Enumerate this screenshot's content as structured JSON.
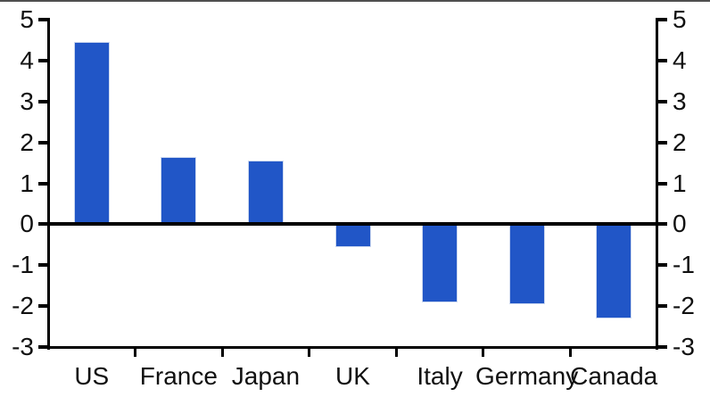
{
  "chart_data": {
    "type": "bar",
    "categories": [
      "US",
      "France",
      "Japan",
      "UK",
      "Italy",
      "Germany",
      "Canada"
    ],
    "values": [
      4.45,
      1.65,
      1.55,
      -0.55,
      -1.9,
      -1.95,
      -2.3
    ],
    "title": "",
    "xlabel": "",
    "ylabel": "",
    "ylim": [
      -3,
      5
    ],
    "yticks": [
      5,
      4,
      3,
      2,
      1,
      0,
      -1,
      -2,
      -3
    ],
    "dual_y_axis": true,
    "grid": false,
    "legend_position": "none",
    "zero_line": true,
    "colors": {
      "bar": "#2156c7",
      "bar_edge": "#ccd8ef",
      "axis": "#000000",
      "text": "#111111",
      "top_border": "#4f4f4f"
    }
  }
}
